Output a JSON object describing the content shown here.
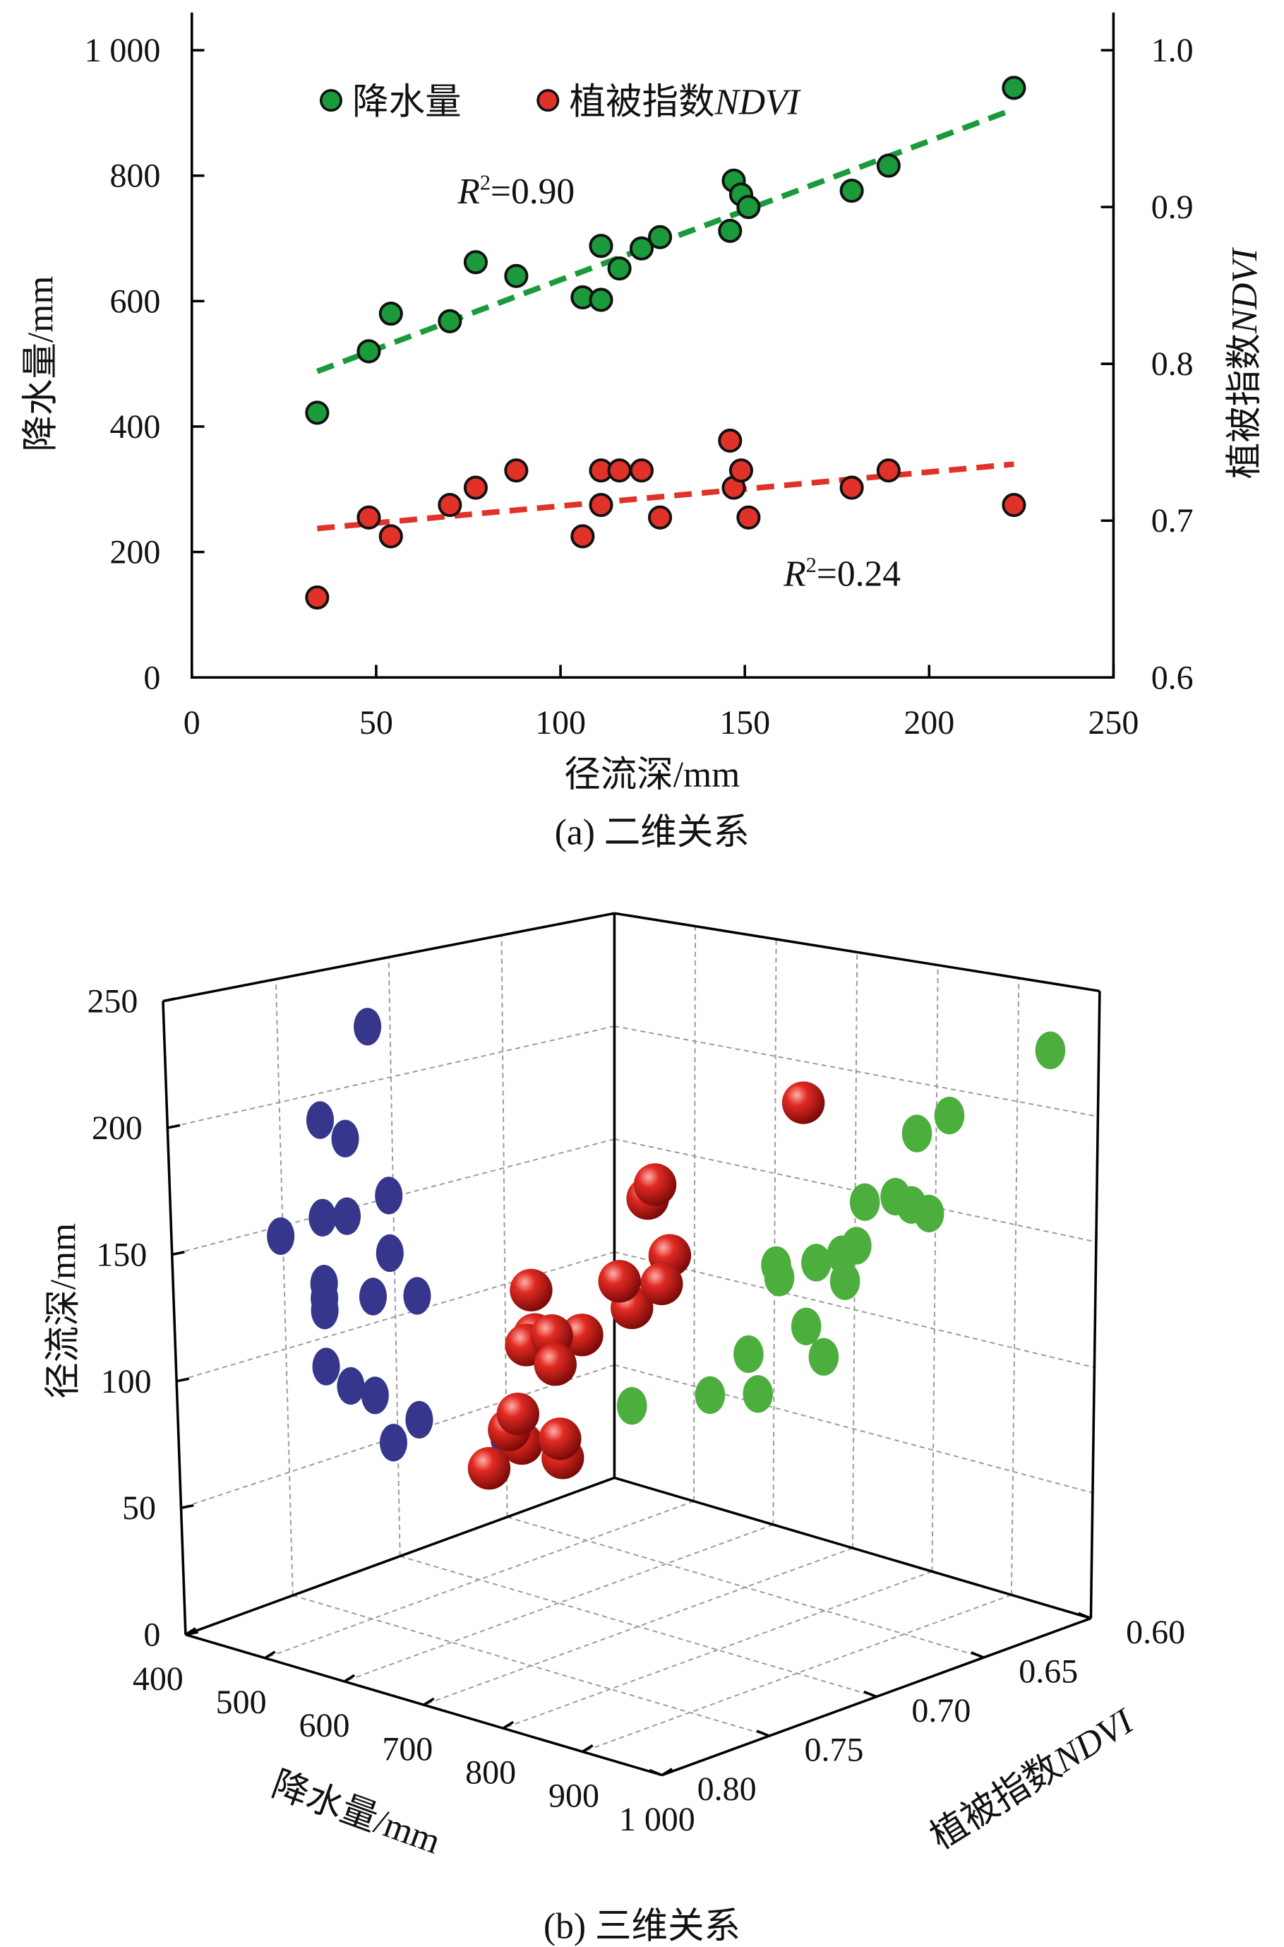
{
  "chart_data": [
    {
      "type": "scatter",
      "caption": "(a) 二维关系",
      "xlabel": "径流深/mm",
      "ylabel": "降水量/mm",
      "y2label": [
        "植被指数",
        "NDVI"
      ],
      "xlim": [
        0,
        250
      ],
      "ylim": [
        0,
        1000
      ],
      "y2lim": [
        0.6,
        1.0
      ],
      "xticks": [
        0,
        50,
        100,
        150,
        200,
        250
      ],
      "xtick_labels": [
        "0",
        "50",
        "100",
        "150",
        "200",
        "250"
      ],
      "yticks": [
        0,
        200,
        400,
        600,
        800,
        1000
      ],
      "ytick_labels": [
        "0",
        "200",
        "400",
        "600",
        "800",
        "1 000"
      ],
      "y2ticks": [
        0.6,
        0.7,
        0.8,
        0.9,
        1.0
      ],
      "y2tick_labels": [
        "0.6",
        "0.7",
        "0.8",
        "0.9",
        "1.0"
      ],
      "grid": false,
      "legend_position": "top-left",
      "series": [
        {
          "legend": [
            "降水量",
            ""
          ],
          "axis": "left",
          "color": "#1a9a3a",
          "points": [
            [
              34,
              422
            ],
            [
              48,
              520
            ],
            [
              54,
              580
            ],
            [
              70,
              568
            ],
            [
              77,
              662
            ],
            [
              88,
              640
            ],
            [
              106,
              606
            ],
            [
              111,
              602
            ],
            [
              111,
              688
            ],
            [
              116,
              652
            ],
            [
              122,
              684
            ],
            [
              127,
              702
            ],
            [
              146,
              712
            ],
            [
              147,
              792
            ],
            [
              149,
              770
            ],
            [
              151,
              750
            ],
            [
              179,
              776
            ],
            [
              189,
              816
            ],
            [
              223,
              940
            ]
          ],
          "trend": [
            [
              34,
              488
            ],
            [
              223,
              906
            ]
          ],
          "annotation": {
            "prefix": "R",
            "sup": "2",
            "value": "=0.90"
          }
        },
        {
          "legend": [
            "植被指数",
            "NDVI"
          ],
          "axis": "right",
          "color": "#e03228",
          "points": [
            [
              34,
              0.651
            ],
            [
              48,
              0.702
            ],
            [
              54,
              0.69
            ],
            [
              70,
              0.71
            ],
            [
              77,
              0.721
            ],
            [
              88,
              0.732
            ],
            [
              106,
              0.69
            ],
            [
              111,
              0.71
            ],
            [
              111,
              0.732
            ],
            [
              116,
              0.732
            ],
            [
              122,
              0.732
            ],
            [
              127,
              0.702
            ],
            [
              146,
              0.751
            ],
            [
              147,
              0.721
            ],
            [
              149,
              0.732
            ],
            [
              151,
              0.702
            ],
            [
              179,
              0.721
            ],
            [
              189,
              0.732
            ],
            [
              223,
              0.71
            ]
          ],
          "trend": [
            [
              34,
              0.695
            ],
            [
              223,
              0.736
            ]
          ],
          "annotation": {
            "prefix": "R",
            "sup": "2",
            "value": "=0.24"
          }
        }
      ]
    },
    {
      "type": "scatter3d",
      "caption": "(b) 三维关系",
      "xlabel": "降水量/mm",
      "ylabel": [
        "植被指数",
        "NDVI"
      ],
      "zlabel": "径流深/mm",
      "xlim": [
        400,
        1000
      ],
      "ylim": [
        0.6,
        0.8
      ],
      "zlim": [
        0,
        250
      ],
      "xtick_labels": [
        "400",
        "500",
        "600",
        "700",
        "800",
        "900",
        "1 000"
      ],
      "ytick_labels": [
        "0.60",
        "0.65",
        "0.70",
        "0.75",
        "0.80"
      ],
      "ztick_labels": [
        "0",
        "50",
        "100",
        "150",
        "200",
        "250"
      ],
      "grid": true,
      "colors": {
        "points": "#d42020",
        "projection_ndvi_wall": "#35368c",
        "projection_precip_wall": "#4cae3c"
      },
      "points_precip_ndvi_runoff": [
        [
          422,
          0.651,
          34
        ],
        [
          520,
          0.702,
          48
        ],
        [
          580,
          0.69,
          54
        ],
        [
          568,
          0.71,
          70
        ],
        [
          662,
          0.721,
          77
        ],
        [
          640,
          0.732,
          88
        ],
        [
          606,
          0.69,
          106
        ],
        [
          602,
          0.71,
          111
        ],
        [
          688,
          0.732,
          111
        ],
        [
          652,
          0.732,
          116
        ],
        [
          684,
          0.732,
          122
        ],
        [
          702,
          0.702,
          127
        ],
        [
          712,
          0.751,
          146
        ],
        [
          792,
          0.721,
          147
        ],
        [
          770,
          0.732,
          149
        ],
        [
          750,
          0.702,
          151
        ],
        [
          776,
          0.721,
          179
        ],
        [
          816,
          0.732,
          189
        ],
        [
          940,
          0.71,
          223
        ]
      ]
    }
  ]
}
